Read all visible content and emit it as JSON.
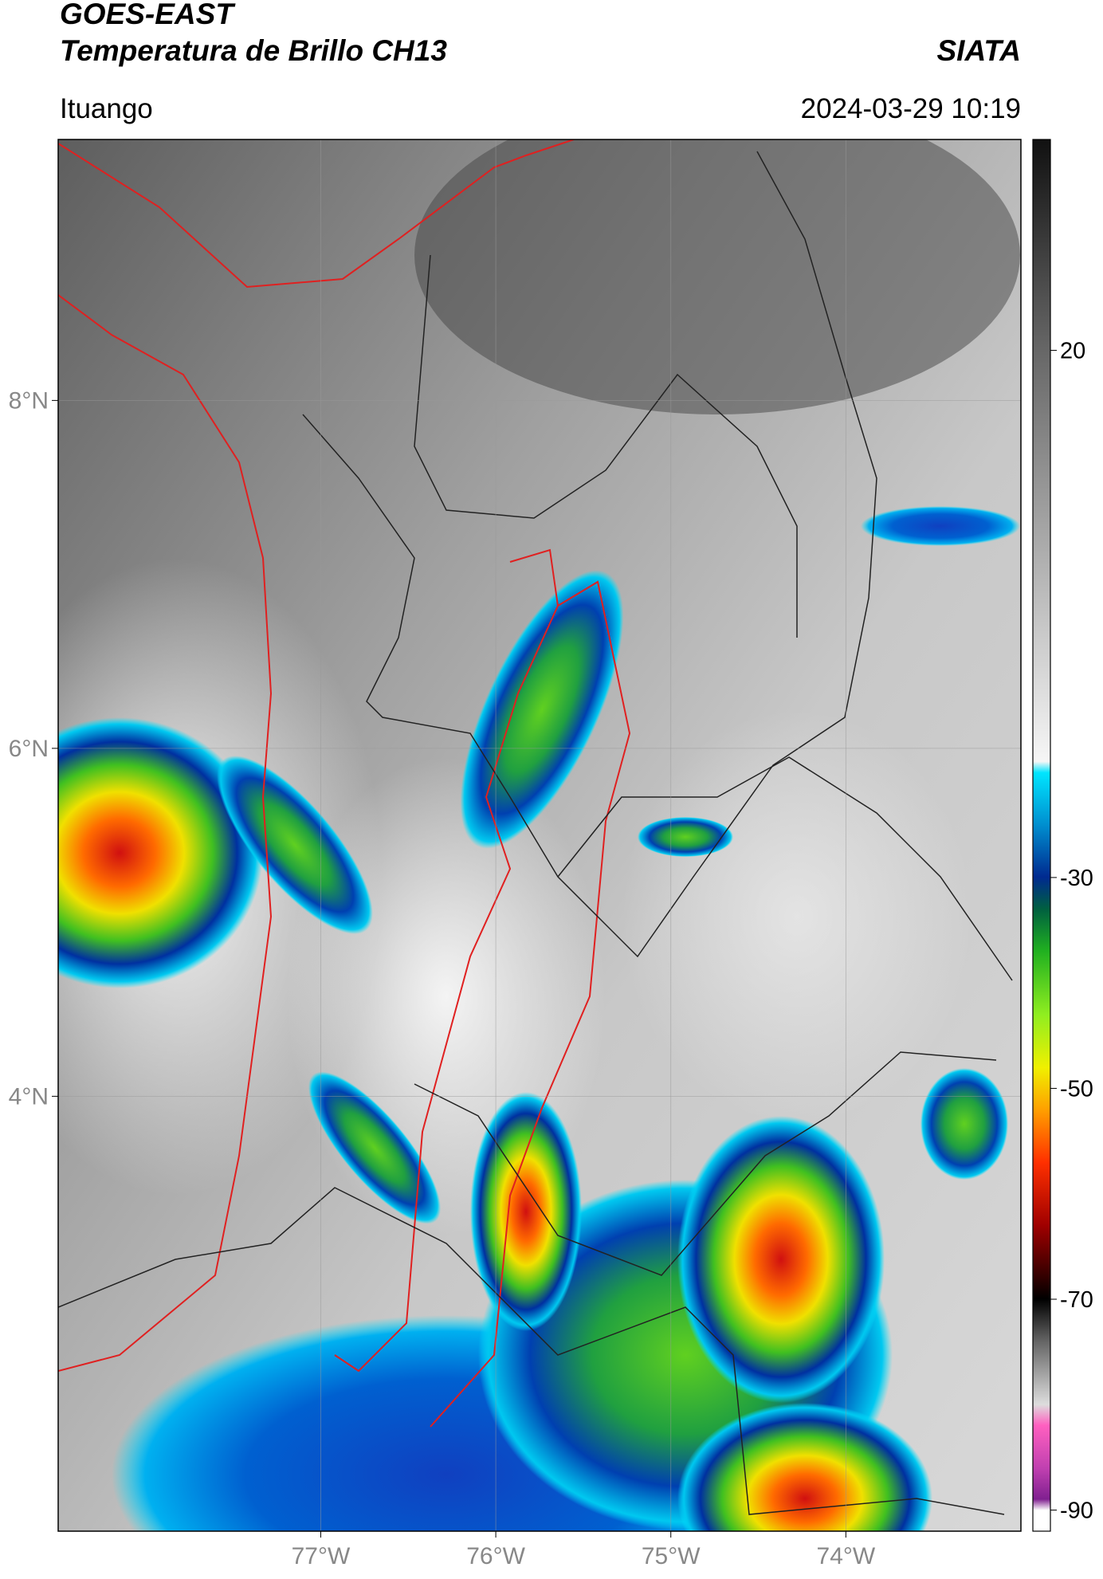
{
  "header": {
    "title": "GOES-EAST",
    "subtitle": "Temperatura de Brillo CH13",
    "organization": "SIATA",
    "location": "Ituango",
    "datetime": "2024-03-29 10:19"
  },
  "map": {
    "type": "map",
    "xlim": [
      -78.5,
      -73
    ],
    "ylim": [
      1.5,
      9.5
    ],
    "xticks": [
      {
        "value": -77,
        "label": "77°W"
      },
      {
        "value": -76,
        "label": "76°W"
      },
      {
        "value": -75,
        "label": "75°W"
      },
      {
        "value": -74,
        "label": "74°W"
      }
    ],
    "yticks": [
      {
        "value": 4,
        "label": "4°N"
      },
      {
        "value": 6,
        "label": "6°N"
      },
      {
        "value": 8,
        "label": "8°N"
      }
    ],
    "grid": true
  },
  "colorbar": {
    "clim": [
      -92,
      40
    ],
    "ticks": [
      -90,
      -70,
      -50,
      -30,
      20
    ]
  }
}
